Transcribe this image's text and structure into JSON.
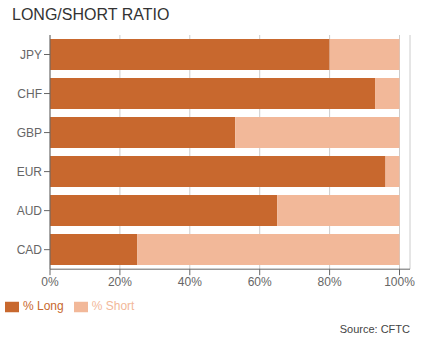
{
  "chart_data": {
    "type": "bar",
    "orientation": "horizontal",
    "stacked": true,
    "title": "LONG/SHORT RATIO",
    "categories": [
      "JPY",
      "CHF",
      "GBP",
      "EUR",
      "AUD",
      "CAD"
    ],
    "series": [
      {
        "name": "% Long",
        "color": "#C8682E",
        "values": [
          80,
          93,
          53,
          96,
          65,
          25
        ]
      },
      {
        "name": "% Short",
        "color": "#F2B899",
        "values": [
          20,
          7,
          47,
          4,
          35,
          75
        ]
      }
    ],
    "xlim": [
      0,
      103
    ],
    "xticks": [
      {
        "value": 0,
        "label": "0%"
      },
      {
        "value": 20,
        "label": "20%"
      },
      {
        "value": 40,
        "label": "40%"
      },
      {
        "value": 60,
        "label": "60%"
      },
      {
        "value": 80,
        "label": "80%"
      },
      {
        "value": 100,
        "label": "100%"
      }
    ],
    "grid": true,
    "legend": "lower left",
    "annotations": [
      "Source: CFTC"
    ]
  }
}
